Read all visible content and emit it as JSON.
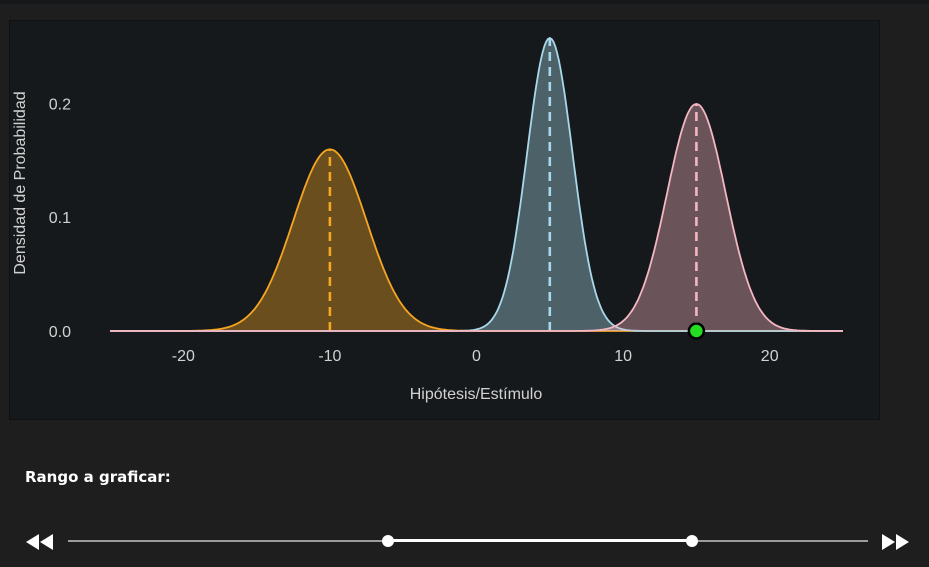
{
  "chart_data": {
    "type": "area",
    "xlabel": "Hipótesis/Estímulo",
    "ylabel": "Densidad de Probabilidad",
    "xlim": [
      -25,
      25
    ],
    "ylim": [
      0,
      0.26
    ],
    "xticks": [
      "-20",
      "-10",
      "0",
      "10",
      "20"
    ],
    "xtick_values": [
      -20,
      -10,
      0,
      10,
      20
    ],
    "yticks": [
      "0.0",
      "0.1",
      "0.2"
    ],
    "ytick_values": [
      0,
      0.1,
      0.2
    ],
    "grid": false,
    "series": [
      {
        "mean": -10,
        "sd": 2.5,
        "fill": "#f5a623",
        "line": "#f5a623"
      },
      {
        "mean": 5,
        "sd": 1.55,
        "fill": "#a8d8ea",
        "line": "#a8d8ea"
      },
      {
        "mean": 15,
        "sd": 2.0,
        "fill": "#f4b6c2",
        "line": "#f4b6c2"
      }
    ],
    "marker": {
      "x": 15,
      "y": 0,
      "color": "#22dd22"
    }
  },
  "controls": {
    "range_label": "Rango a graficar:",
    "slider_min": -25,
    "slider_max": 25,
    "slider_low": -5,
    "slider_high": 14
  }
}
